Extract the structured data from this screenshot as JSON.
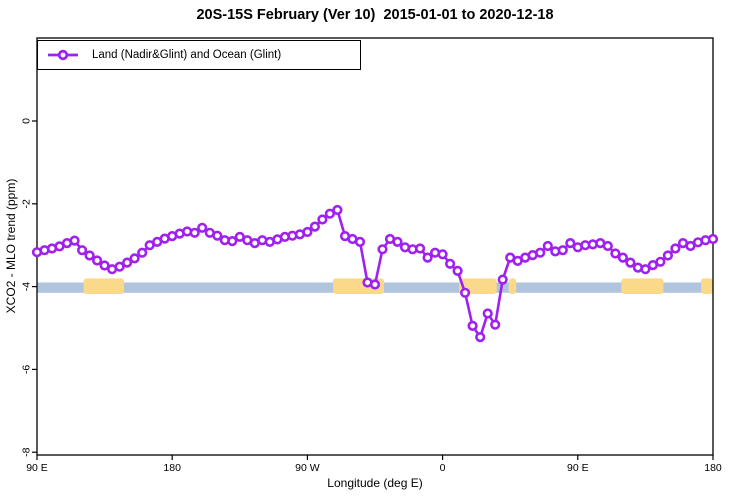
{
  "title": "20S-15S February (Ver 10)  2015-01-01 to 2020-12-18",
  "legend": {
    "label": "Land (Nadir&Glint) and Ocean (Glint)"
  },
  "axes": {
    "x": {
      "label": "Longitude (deg E)",
      "ticks": [
        {
          "pos": 90,
          "label": "90 E"
        },
        {
          "pos": 180,
          "label": "180"
        },
        {
          "pos": 270,
          "label": "90 W"
        },
        {
          "pos": 360,
          "label": "0"
        },
        {
          "pos": 450,
          "label": "90 E"
        },
        {
          "pos": 540,
          "label": "180"
        }
      ]
    },
    "y": {
      "label": "XCO2 - MLO trend (ppm)",
      "ticks": [
        {
          "pos": 0,
          "label": "0"
        },
        {
          "pos": -2,
          "label": "-2"
        },
        {
          "pos": -4,
          "label": "-4"
        },
        {
          "pos": -6,
          "label": "-6"
        },
        {
          "pos": -8,
          "label": "-8"
        }
      ]
    }
  },
  "colors": {
    "line": "#A020F0",
    "blue_band": "#B0C4DE",
    "orange_band": "#FBD98B",
    "axis": "#000000",
    "background": "#FFFFFF"
  },
  "chart_data": {
    "type": "line",
    "title": "20S-15S February (Ver 10)  2015-01-01 to 2020-12-18",
    "xlabel": "Longitude (deg E)",
    "ylabel": "XCO2 - MLO trend (ppm)",
    "x_axis_note": "longitude axis starts at 90E, wraps eastward through 180, 90W, 0, 90E to 180 (unwrapped 90..540 deg)",
    "xlim": [
      90,
      540
    ],
    "ylim": [
      2,
      -8.1
    ],
    "grid": false,
    "legend_position": "topleft",
    "series": [
      {
        "name": "Land (Nadir&Glint) and Ocean (Glint)",
        "color": "#A020F0",
        "marker": "open-circle",
        "x": [
          90,
          95,
          100,
          105,
          110,
          115,
          120,
          125,
          130,
          135,
          140,
          145,
          150,
          155,
          160,
          165,
          170,
          175,
          180,
          185,
          190,
          195,
          200,
          205,
          210,
          215,
          220,
          225,
          230,
          235,
          240,
          245,
          250,
          255,
          260,
          265,
          270,
          275,
          280,
          285,
          290,
          295,
          300,
          305,
          310,
          315,
          320,
          325,
          330,
          335,
          340,
          345,
          350,
          355,
          360,
          365,
          370,
          375,
          380,
          385,
          390,
          395,
          400,
          405,
          410,
          415,
          420,
          425,
          430,
          435,
          440,
          445,
          450,
          455,
          460,
          465,
          470,
          475,
          480,
          485,
          490,
          495,
          500,
          505,
          510,
          515,
          520,
          525,
          530,
          535,
          540
        ],
        "y": [
          -3.17,
          -3.12,
          -3.08,
          -3.03,
          -2.95,
          -2.89,
          -3.12,
          -3.25,
          -3.37,
          -3.49,
          -3.58,
          -3.52,
          -3.42,
          -3.32,
          -3.18,
          -3.0,
          -2.92,
          -2.84,
          -2.78,
          -2.72,
          -2.67,
          -2.7,
          -2.58,
          -2.7,
          -2.77,
          -2.88,
          -2.9,
          -2.8,
          -2.88,
          -2.95,
          -2.88,
          -2.92,
          -2.86,
          -2.8,
          -2.77,
          -2.74,
          -2.68,
          -2.55,
          -2.38,
          -2.24,
          -2.15,
          -2.78,
          -2.85,
          -2.92,
          -3.9,
          -3.95,
          -3.1,
          -2.85,
          -2.92,
          -3.05,
          -3.1,
          -3.08,
          -3.3,
          -3.18,
          -3.22,
          -3.45,
          -3.62,
          -4.15,
          -4.95,
          -5.22,
          -4.65,
          -4.92,
          -3.83,
          -3.3,
          -3.38,
          -3.3,
          -3.24,
          -3.18,
          -3.02,
          -3.15,
          -3.12,
          -2.95,
          -3.05,
          -3.0,
          -2.98,
          -2.95,
          -3.02,
          -3.2,
          -3.3,
          -3.42,
          -3.54,
          -3.58,
          -3.48,
          -3.4,
          -3.25,
          -3.08,
          -2.95,
          -3.02,
          -2.93,
          -2.88,
          -2.85
        ]
      }
    ],
    "bands": {
      "blue": {
        "color": "#B0C4DE",
        "x_range": [
          90,
          540
        ],
        "y_range": [
          -3.9,
          -4.15
        ]
      },
      "orange": {
        "color": "#FBD98B",
        "y_range": [
          -3.8,
          -4.18
        ],
        "patches": [
          {
            "x_range": [
              121,
              148
            ]
          },
          {
            "x_range": [
              287,
              321
            ]
          },
          {
            "x_range": [
              371,
              396
            ]
          },
          {
            "x_range": [
              404,
              409
            ]
          },
          {
            "x_range": [
              479,
              507
            ]
          },
          {
            "x_range": [
              532,
              540
            ]
          }
        ]
      }
    }
  }
}
